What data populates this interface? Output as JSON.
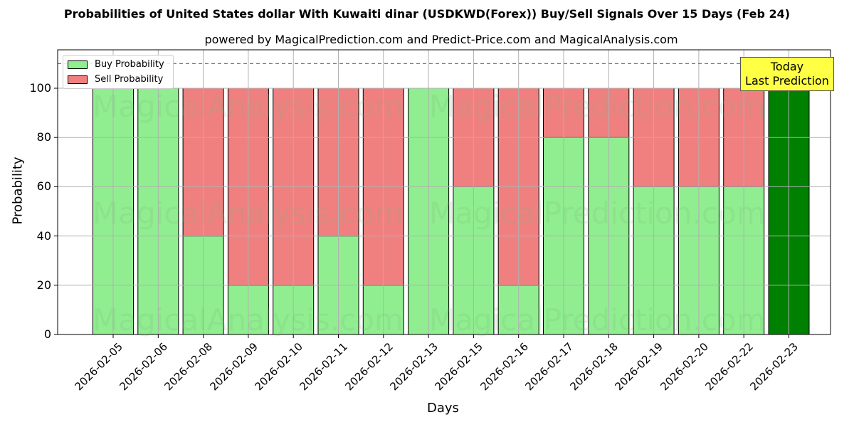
{
  "title": "Probabilities of United States dollar With Kuwaiti dinar (USDKWD(Forex)) Buy/Sell Signals Over 15 Days (Feb 24)",
  "subtitle": "powered by MagicalPrediction.com and Predict-Price.com and MagicalAnalysis.com",
  "legend": {
    "buy": "Buy Probability",
    "sell": "Sell Probability"
  },
  "annotation": {
    "line1": "Today",
    "line2": "Last Prediction"
  },
  "watermarks": [
    "MagicalAnalysis.com",
    "MagicalPrediction.com"
  ],
  "colors": {
    "buy": "#90ee90",
    "sell": "#f08080",
    "today": "#008000",
    "annotation_bg": "#ffff44"
  },
  "yticks": [
    "0",
    "20",
    "40",
    "60",
    "80",
    "100"
  ],
  "chart_data": {
    "type": "bar",
    "stacked": true,
    "title": "Probabilities of United States dollar With Kuwaiti dinar (USDKWD(Forex)) Buy/Sell Signals Over 15 Days (Feb 24)",
    "subtitle": "powered by MagicalPrediction.com and Predict-Price.com and MagicalAnalysis.com",
    "xlabel": "Days",
    "ylabel": "Probability",
    "ylim": [
      0,
      115
    ],
    "grid": true,
    "legend_position": "upper left",
    "reference_line": {
      "y": 110,
      "style": "dashed"
    },
    "categories": [
      "2026-02-05",
      "2026-02-06",
      "2026-02-08",
      "2026-02-09",
      "2026-02-10",
      "2026-02-11",
      "2026-02-12",
      "2026-02-13",
      "2026-02-15",
      "2026-02-16",
      "2026-02-17",
      "2026-02-18",
      "2026-02-19",
      "2026-02-20",
      "2026-02-22",
      "2026-02-23"
    ],
    "series": [
      {
        "name": "Buy Probability",
        "values": [
          100,
          100,
          40,
          20,
          20,
          40,
          20,
          100,
          60,
          20,
          80,
          80,
          60,
          60,
          60,
          100
        ]
      },
      {
        "name": "Sell Probability",
        "values": [
          0,
          0,
          60,
          80,
          80,
          60,
          80,
          0,
          40,
          80,
          20,
          20,
          40,
          40,
          40,
          0
        ]
      }
    ],
    "annotations": [
      {
        "text": "Today\nLast Prediction",
        "category": "2026-02-23"
      }
    ]
  }
}
